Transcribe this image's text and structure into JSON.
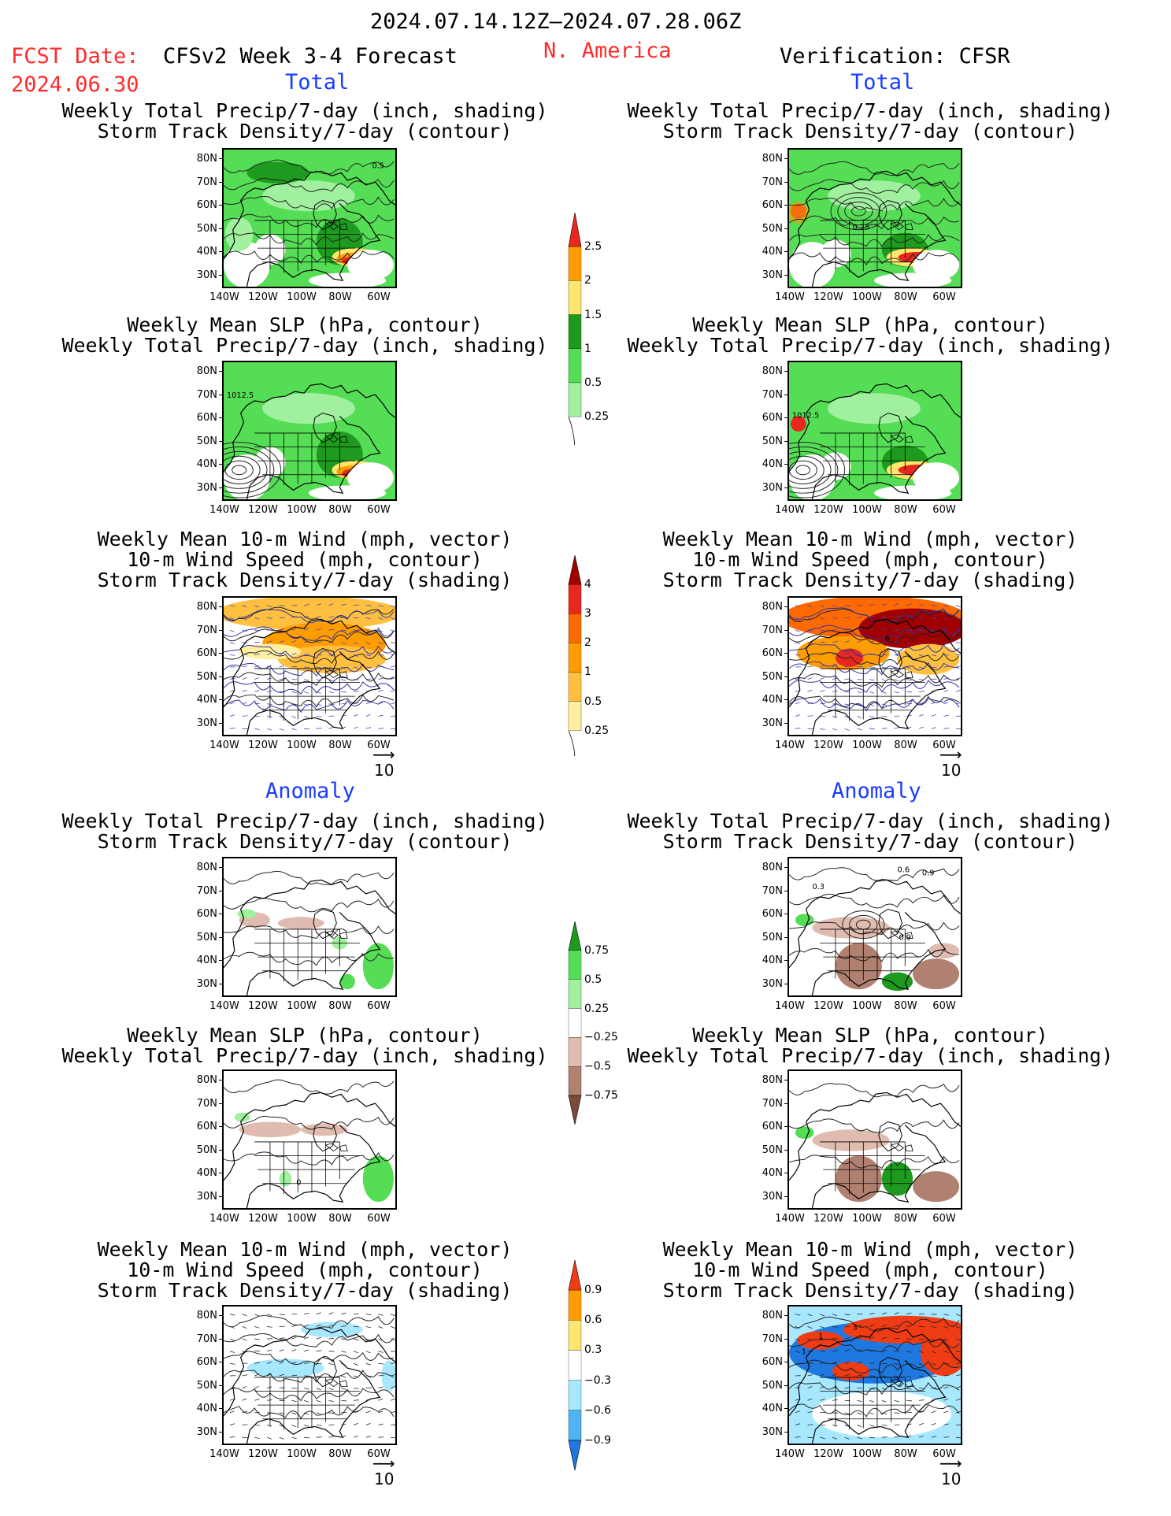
{
  "header": {
    "period": "2024.07.14.12Z–2024.07.28.06Z",
    "fcst_label": "FCST Date:",
    "fcst_date": "2024.06.30",
    "product": "CFSv2 Week 3-4 Forecast",
    "region": "N. America",
    "verification": "Verification: CFSR"
  },
  "sections": {
    "total": "Total",
    "anomaly": "Anomaly"
  },
  "titles": {
    "precip_storm": [
      "Weekly Total Precip/7-day (inch, shading)",
      "Storm Track Density/7-day (contour)"
    ],
    "slp_precip": [
      "Weekly Mean SLP (hPa, contour)",
      "Weekly Total Precip/7-day (inch, shading)"
    ],
    "wind_storm": [
      "Weekly Mean 10-m Wind (mph, vector)",
      "10-m Wind Speed (mph, contour)",
      "Storm Track Density/7-day (shading)"
    ]
  },
  "axes": {
    "lat_labels": [
      "80N",
      "70N",
      "60N",
      "50N",
      "40N",
      "30N"
    ],
    "lon_labels": [
      "140W",
      "120W",
      "100W",
      "80W",
      "60W"
    ]
  },
  "vector_ref": "10",
  "map_labels": {
    "fc_total_precip": "0.5",
    "vf_total_precip": "0.25",
    "slp": "1012.5",
    "vf_total_wind": "6",
    "vf_anom_precip": [
      "0.6",
      "0.9",
      "0.3",
      "0.9"
    ],
    "anom_slp": "0",
    "vf_anom_wind": [
      "1",
      "3",
      "1",
      "2"
    ]
  },
  "colorbars": {
    "precip_total": {
      "labels": [
        "2.5",
        "2",
        "1.5",
        "1",
        "0.5",
        "0.25"
      ],
      "colors": [
        "#e8281e",
        "#ff9d00",
        "#ffe66e",
        "#1e9a1e",
        "#55dd55",
        "#a0f0a0"
      ]
    },
    "storm_total": {
      "labels": [
        "4",
        "3",
        "2",
        "1",
        "0.5",
        "0.25"
      ],
      "colors": [
        "#a00000",
        "#e8281e",
        "#ff6a00",
        "#ff9d00",
        "#ffc040",
        "#fff0a0"
      ]
    },
    "precip_anom": {
      "labels": [
        "0.75",
        "0.5",
        "0.25",
        "−0.25",
        "−0.5",
        "−0.75"
      ],
      "colors": [
        "#1e9a1e",
        "#55dd55",
        "#a0f0a0",
        "#ffffff",
        "#e0bcb0",
        "#b08070",
        "#7a4a3a"
      ]
    },
    "storm_anom": {
      "labels": [
        "0.9",
        "0.6",
        "0.3",
        "−0.3",
        "−0.6",
        "−0.9"
      ],
      "colors": [
        "#f03c14",
        "#ff9d00",
        "#ffe66e",
        "#ffffff",
        "#a8e8ff",
        "#50b4f0",
        "#1e78e0"
      ]
    }
  }
}
